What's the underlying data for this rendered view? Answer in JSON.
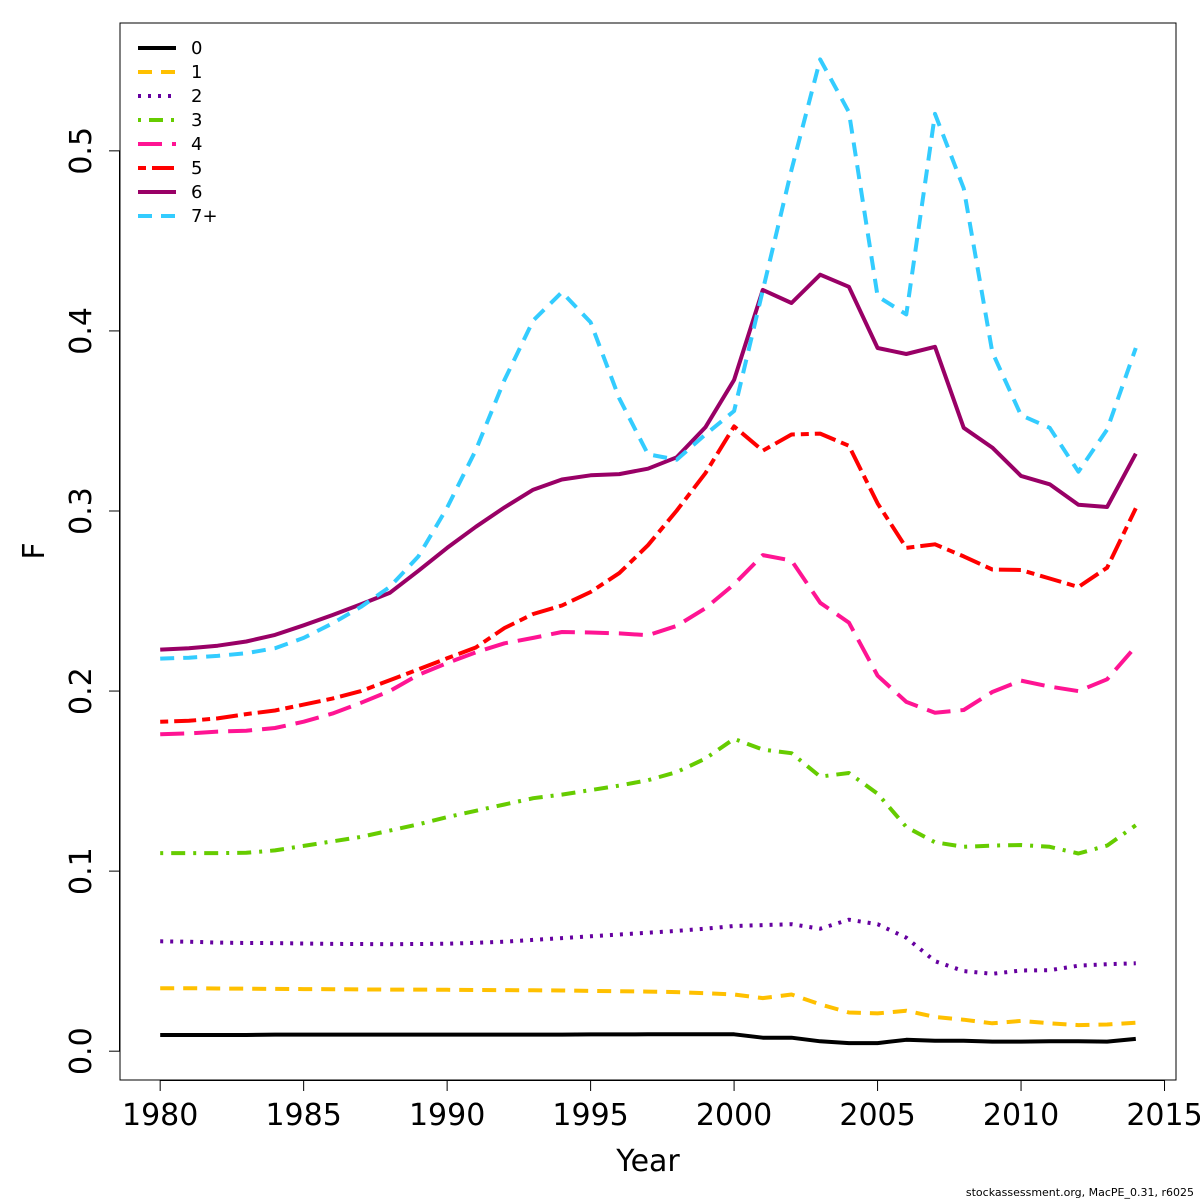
{
  "chart_data": {
    "type": "line",
    "title": "",
    "xlabel": "Year",
    "ylabel": "F",
    "xlim": [
      1978.6,
      2015.4
    ],
    "ylim": [
      -0.016,
      0.571
    ],
    "xticks": [
      1980,
      1985,
      1990,
      1995,
      2000,
      2005,
      2010,
      2015
    ],
    "yticks": [
      0.0,
      0.1,
      0.2,
      0.3,
      0.4,
      0.5
    ],
    "ytick_labels": [
      "0.0",
      "0.1",
      "0.2",
      "0.3",
      "0.4",
      "0.5"
    ],
    "grid": false,
    "legend_position": "top-left",
    "x": [
      1980,
      1981,
      1982,
      1983,
      1984,
      1985,
      1986,
      1987,
      1988,
      1989,
      1990,
      1991,
      1992,
      1993,
      1994,
      1995,
      1996,
      1997,
      1998,
      1999,
      2000,
      2001,
      2002,
      2003,
      2004,
      2005,
      2006,
      2007,
      2008,
      2009,
      2010,
      2011,
      2012,
      2013,
      2014
    ],
    "series": [
      {
        "name": "0",
        "color": "#000000",
        "dash": "solid",
        "values": [
          0.009,
          0.009,
          0.009,
          0.009,
          0.0092,
          0.0092,
          0.0092,
          0.0092,
          0.0092,
          0.0092,
          0.0092,
          0.0092,
          0.0092,
          0.0092,
          0.0092,
          0.0093,
          0.0093,
          0.0094,
          0.0094,
          0.0094,
          0.0094,
          0.0075,
          0.0075,
          0.0055,
          0.0045,
          0.0045,
          0.0063,
          0.0058,
          0.0058,
          0.0053,
          0.0053,
          0.0055,
          0.0055,
          0.0053,
          0.0068
        ]
      },
      {
        "name": "1",
        "color": "#FFC000",
        "dash": "dashed",
        "values": [
          0.035,
          0.035,
          0.0348,
          0.0347,
          0.0346,
          0.0345,
          0.0344,
          0.0343,
          0.0342,
          0.0342,
          0.0341,
          0.034,
          0.0339,
          0.0338,
          0.0337,
          0.0335,
          0.0333,
          0.0331,
          0.0328,
          0.0322,
          0.0315,
          0.0295,
          0.0315,
          0.026,
          0.0215,
          0.021,
          0.0225,
          0.019,
          0.0175,
          0.0155,
          0.0168,
          0.0155,
          0.0145,
          0.0148,
          0.0158
        ]
      },
      {
        "name": "2",
        "color": "#6600A0",
        "dash": "dotted",
        "values": [
          0.061,
          0.0608,
          0.0603,
          0.0601,
          0.06,
          0.0598,
          0.0596,
          0.0595,
          0.0594,
          0.0595,
          0.0597,
          0.0602,
          0.0608,
          0.0618,
          0.0628,
          0.0638,
          0.0648,
          0.0658,
          0.0668,
          0.068,
          0.0695,
          0.07,
          0.0705,
          0.068,
          0.073,
          0.0705,
          0.063,
          0.05,
          0.0445,
          0.043,
          0.0448,
          0.045,
          0.0475,
          0.0483,
          0.0488
        ]
      },
      {
        "name": "3",
        "color": "#66CC00",
        "dash": "dotdash",
        "values": [
          0.11,
          0.11,
          0.11,
          0.1102,
          0.1115,
          0.114,
          0.1165,
          0.119,
          0.1225,
          0.126,
          0.13,
          0.1335,
          0.137,
          0.1405,
          0.1425,
          0.145,
          0.1475,
          0.1505,
          0.155,
          0.1625,
          0.1735,
          0.1675,
          0.1655,
          0.1525,
          0.1545,
          0.143,
          0.1245,
          0.116,
          0.1135,
          0.1142,
          0.1145,
          0.1135,
          0.1098,
          0.1142,
          0.1255
        ]
      },
      {
        "name": "4",
        "color": "#FF1493",
        "dash": "longdash",
        "values": [
          0.176,
          0.1765,
          0.1775,
          0.178,
          0.1795,
          0.183,
          0.1875,
          0.1935,
          0.2,
          0.209,
          0.2155,
          0.2215,
          0.2265,
          0.2295,
          0.2328,
          0.2325,
          0.232,
          0.231,
          0.2362,
          0.246,
          0.2593,
          0.2755,
          0.2725,
          0.249,
          0.238,
          0.2085,
          0.194,
          0.188,
          0.1895,
          0.1995,
          0.2058,
          0.2025,
          0.2,
          0.2065,
          0.2248
        ]
      },
      {
        "name": "5",
        "color": "#FF0000",
        "dash": "twodash",
        "values": [
          0.183,
          0.1835,
          0.1848,
          0.1872,
          0.1892,
          0.1925,
          0.1958,
          0.2,
          0.206,
          0.212,
          0.2182,
          0.2242,
          0.235,
          0.2428,
          0.2475,
          0.255,
          0.2655,
          0.281,
          0.3002,
          0.321,
          0.347,
          0.3335,
          0.3425,
          0.343,
          0.3362,
          0.3042,
          0.2795,
          0.2815,
          0.2748,
          0.2675,
          0.2672,
          0.2625,
          0.2578,
          0.2685,
          0.3015
        ]
      },
      {
        "name": "6",
        "color": "#990066",
        "dash": "solid",
        "values": [
          0.223,
          0.2238,
          0.2252,
          0.2275,
          0.2312,
          0.2365,
          0.2422,
          0.2482,
          0.2545,
          0.2668,
          0.2795,
          0.2912,
          0.302,
          0.3118,
          0.3175,
          0.3198,
          0.3205,
          0.3235,
          0.3298,
          0.3465,
          0.3728,
          0.4228,
          0.4155,
          0.4312,
          0.4245,
          0.3905,
          0.3872,
          0.3912,
          0.3462,
          0.3352,
          0.3195,
          0.3148,
          0.3035,
          0.3022,
          0.3318
        ]
      },
      {
        "name": "7+",
        "color": "#33CCFF",
        "dash": "dashed",
        "values": [
          0.218,
          0.2185,
          0.2195,
          0.221,
          0.2238,
          0.2295,
          0.2375,
          0.2468,
          0.2578,
          0.2748,
          0.3018,
          0.3338,
          0.3728,
          0.4058,
          0.4215,
          0.4048,
          0.3625,
          0.3315,
          0.3285,
          0.3425,
          0.3555,
          0.4225,
          0.4895,
          0.5508,
          0.5215,
          0.4192,
          0.4092,
          0.5205,
          0.4792,
          0.3882,
          0.3532,
          0.3462,
          0.3218,
          0.3452,
          0.3905
        ]
      }
    ]
  },
  "footer": {
    "credit": "stockassessment.org, MacPE_0.31, r6025"
  }
}
